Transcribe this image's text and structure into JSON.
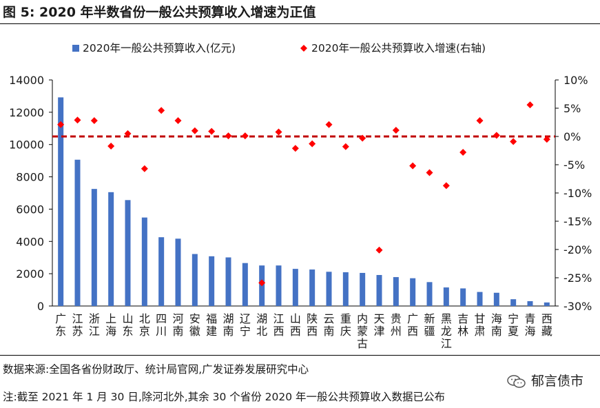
{
  "figure_title": "图 5:  2020 年半数省份一般公共预算收入增速为正值",
  "source_text": "数据来源:全国各省份财政厅、统计局官网,广发证券发展研究中心",
  "note_text": "注:截至 2021 年 1 月 30 日,除河北外,其余 30 个省份 2020 年一般公共预算收入数据已公布",
  "watermark": "郁言债市",
  "colors": {
    "bar": "#4472c4",
    "marker": "#ff0000",
    "zero_line": "#c00000"
  },
  "chart_data": {
    "type": "bar",
    "title": "",
    "categories": [
      [
        "广",
        "东"
      ],
      [
        "江",
        "苏"
      ],
      [
        "浙",
        "江"
      ],
      [
        "上",
        "海"
      ],
      [
        "山",
        "东"
      ],
      [
        "北",
        "京"
      ],
      [
        "四",
        "川"
      ],
      [
        "河",
        "南"
      ],
      [
        "安",
        "徽"
      ],
      [
        "福",
        "建"
      ],
      [
        "湖",
        "南"
      ],
      [
        "辽",
        "宁"
      ],
      [
        "湖",
        "北"
      ],
      [
        "江",
        "西"
      ],
      [
        "山",
        "西"
      ],
      [
        "陕",
        "西"
      ],
      [
        "云",
        "南"
      ],
      [
        "重",
        "庆"
      ],
      [
        "内",
        "蒙",
        "古"
      ],
      [
        "天",
        "津"
      ],
      [
        "贵",
        "州"
      ],
      [
        "广",
        "西"
      ],
      [
        "新",
        "疆"
      ],
      [
        "黑",
        "龙",
        "江"
      ],
      [
        "吉",
        "林"
      ],
      [
        "甘",
        "肃"
      ],
      [
        "海",
        "南"
      ],
      [
        "宁",
        "夏"
      ],
      [
        "青",
        "海"
      ],
      [
        "西",
        "藏"
      ]
    ],
    "series": [
      {
        "name": "2020年一般公共预算收入(亿元)",
        "kind": "bar",
        "axis": "left",
        "values": [
          12920,
          9060,
          7250,
          7050,
          6560,
          5480,
          4260,
          4170,
          3220,
          3080,
          3010,
          2660,
          2510,
          2510,
          2300,
          2260,
          2120,
          2090,
          2050,
          1920,
          1790,
          1720,
          1480,
          1150,
          1090,
          870,
          820,
          420,
          300,
          220
        ]
      },
      {
        "name": "2020年一般公共预算收入增速(右轴)",
        "kind": "scatter",
        "axis": "right",
        "values": [
          2.1,
          2.9,
          2.8,
          -1.7,
          0.5,
          -5.7,
          4.6,
          2.8,
          1.0,
          0.9,
          0.1,
          0.1,
          -25.9,
          0.8,
          -2.1,
          -1.3,
          2.1,
          -1.8,
          -0.3,
          -20.1,
          1.1,
          -5.2,
          -6.4,
          -8.7,
          -2.8,
          2.8,
          0.2,
          -0.9,
          5.6,
          -0.5
        ]
      }
    ],
    "y_left": {
      "min": 0,
      "max": 14000,
      "ticks": [
        "0",
        "2000",
        "4000",
        "6000",
        "8000",
        "10000",
        "12000",
        "14000"
      ]
    },
    "y_right": {
      "min": -30,
      "max": 10,
      "ticks": [
        "-30%",
        "-25%",
        "-20%",
        "-15%",
        "-10%",
        "-5%",
        "0%",
        "5%",
        "10%"
      ]
    },
    "reference_line": {
      "axis": "right",
      "value": 0,
      "style": "dashed"
    },
    "legend_position": "top",
    "grid": false
  }
}
